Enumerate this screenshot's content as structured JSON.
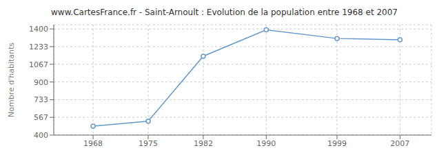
{
  "chart_data": {
    "type": "line",
    "title": "www.CartesFrance.fr - Saint-Arnoult : Evolution de la population entre 1968 et 2007",
    "y_label": "Nombre d'habitants",
    "x": [
      1968,
      1975,
      1982,
      1990,
      1999,
      2007
    ],
    "series": [
      {
        "values": [
          484,
          531,
          1143,
          1391,
          1310,
          1298
        ],
        "color": "#6699cc",
        "marker": "circle"
      }
    ],
    "xlim": [
      1963,
      2011
    ],
    "ylim": [
      400,
      1440
    ],
    "xticks": [
      1968,
      1975,
      1982,
      1990,
      1999,
      2007
    ],
    "yticks": [
      400,
      567,
      733,
      900,
      1067,
      1233,
      1400
    ],
    "grid": true
  }
}
